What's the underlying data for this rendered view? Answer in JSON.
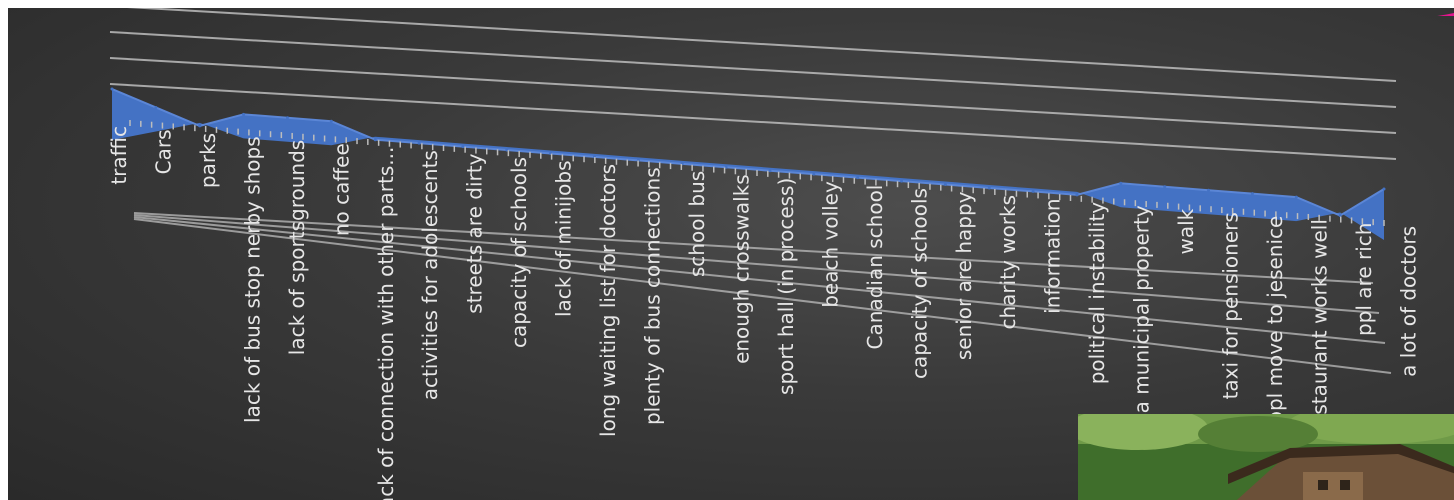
{
  "chart_data": {
    "type": "area",
    "categories": [
      "traffic",
      "Cars",
      "parks",
      "lack of bus stop nerby shops",
      "lack of sportsgrounds",
      "no caffee",
      "lack of connection with other parts...",
      "activities for adolescents",
      "streets are dirty",
      "capacity of schools",
      "lack of minijobs",
      "long waiting list for doctors",
      "plenty of bus connections",
      "school bus",
      "enough crosswalks",
      "sport hall (in process)",
      "beach volley",
      "Canadian school",
      "capacity of schools",
      "senior are happy",
      "charity works",
      "information",
      "political instability",
      "land is not a municipal property",
      "walk",
      "taxi for pensioners",
      "ppl move to jesenice",
      "restaurant works well",
      "ppl are rich",
      "a lot of doctors"
    ],
    "values": [
      3,
      2,
      1,
      2,
      2,
      2,
      1,
      1,
      1,
      1,
      1,
      1,
      1,
      1,
      1,
      1,
      1,
      1,
      1,
      1,
      1,
      1,
      1,
      2,
      2,
      2,
      2,
      2,
      1,
      3
    ],
    "title": "",
    "xlabel": "",
    "ylabel": "",
    "ylim": [
      0,
      4
    ],
    "grid": true,
    "legend": "none",
    "view": "3d-area",
    "colors": {
      "area": "#4472c4",
      "area_top": "#5b86d6",
      "gridline": "#bdbdbd",
      "label": "#e6e6e6",
      "background": "#3d3d3d"
    }
  },
  "decorations": {
    "photo_icon": "village-house-photo",
    "accent_icon": "pink-stroke-accent"
  }
}
